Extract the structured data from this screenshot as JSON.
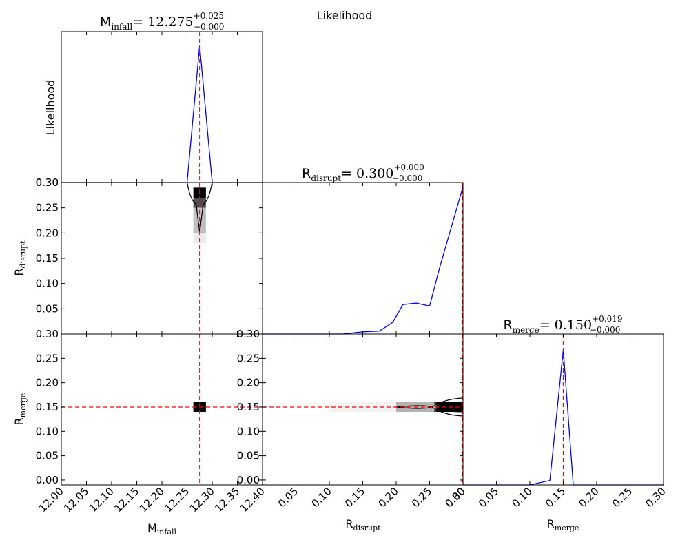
{
  "figure": {
    "suptitle": "Likelihood",
    "likelihood_ylabel": "Likelihood"
  },
  "panel_titles": {
    "m_infall": {
      "var_main": "M",
      "var_sub": "infall",
      "value": "= 12.275",
      "err_plus": "+0.025",
      "err_minus": "−0.000"
    },
    "r_disrupt": {
      "var_main": "R",
      "var_sub": "disrupt",
      "value": "= 0.300",
      "err_plus": "+0.000",
      "err_minus": "−0.000"
    },
    "r_merge": {
      "var_main": "R",
      "var_sub": "merge",
      "value": "= 0.150",
      "err_plus": "+0.019",
      "err_minus": "−0.000"
    }
  },
  "axis_labels": {
    "m_infall": {
      "main": "M",
      "sub": "infall"
    },
    "r_disrupt": {
      "main": "R",
      "sub": "disrupt"
    },
    "r_merge": {
      "main": "R",
      "sub": "merge"
    }
  },
  "colors": {
    "likelihood_line": "#0000ff",
    "best_fit_marker": "#ff0000",
    "contour": "#000000",
    "axes": "#000000"
  },
  "chart_data": [
    {
      "type": "line",
      "panel": "m_infall_1d",
      "x_tick_labels": [
        "12.00",
        "12.05",
        "12.10",
        "12.15",
        "12.20",
        "12.25",
        "12.30",
        "12.35",
        "12.40"
      ],
      "xlim": [
        12.0,
        12.4
      ],
      "ylim": [
        0,
        1.1
      ],
      "series": [
        {
          "x": [
            12.0,
            12.25,
            12.275,
            12.3,
            12.4
          ],
          "y": [
            0,
            0,
            1.0,
            0,
            0
          ]
        }
      ],
      "best_fit_x": 12.275,
      "grid": false
    },
    {
      "type": "line",
      "panel": "r_disrupt_1d",
      "xlim": [
        0.0,
        0.3
      ],
      "ylim": [
        0,
        1.0
      ],
      "series": [
        {
          "x": [
            0.0,
            0.1,
            0.12,
            0.15,
            0.175,
            0.195,
            0.21,
            0.23,
            0.25,
            0.265,
            0.3
          ],
          "y": [
            0,
            0,
            0.0,
            0.015,
            0.02,
            0.08,
            0.2,
            0.21,
            0.19,
            0.45,
            1.0
          ]
        }
      ],
      "best_fit_x": 0.3,
      "grid": false
    },
    {
      "type": "line",
      "panel": "r_merge_1d",
      "x_tick_labels": [
        "0.00",
        "0.05",
        "0.10",
        "0.15",
        "0.20",
        "0.25",
        "0.30"
      ],
      "xlim": [
        0.0,
        0.3
      ],
      "ylim": [
        0,
        1.0
      ],
      "series": [
        {
          "x": [
            0.0,
            0.1,
            0.13,
            0.15,
            0.165,
            0.2,
            0.3
          ],
          "y": [
            0,
            0,
            0.03,
            0.92,
            0,
            0,
            0
          ]
        }
      ],
      "best_fit_x": 0.15,
      "grid": false
    },
    {
      "type": "heatmap",
      "panel": "m_infall_vs_r_disrupt",
      "x": "m_infall",
      "y": "r_disrupt",
      "xlim": [
        12.0,
        12.4
      ],
      "ylim": [
        0.0,
        0.3
      ],
      "y_tick_labels": [
        "0.05",
        "0.10",
        "0.15",
        "0.20",
        "0.25",
        "0.30"
      ],
      "cells": [
        {
          "x": [
            12.2625,
            12.2875
          ],
          "y": [
            0.27,
            0.29
          ],
          "weight": 1.0
        },
        {
          "x": [
            12.2625,
            12.2875
          ],
          "y": [
            0.25,
            0.27
          ],
          "weight": 0.7
        },
        {
          "x": [
            12.2625,
            12.2875
          ],
          "y": [
            0.2,
            0.25
          ],
          "weight": 0.25
        },
        {
          "x": [
            12.2625,
            12.2875
          ],
          "y": [
            0.18,
            0.2
          ],
          "weight": 0.08
        }
      ],
      "best_fit": [
        12.275,
        0.3
      ]
    },
    {
      "type": "heatmap",
      "panel": "m_infall_vs_r_merge",
      "x": "m_infall",
      "y": "r_merge",
      "xlim": [
        12.0,
        12.4
      ],
      "ylim": [
        -0.01,
        0.3
      ],
      "y_tick_labels": [
        "0.00",
        "0.05",
        "0.10",
        "0.15",
        "0.20",
        "0.25",
        "0.30"
      ],
      "cells": [
        {
          "x": [
            12.2625,
            12.2875
          ],
          "y": [
            0.14,
            0.16
          ],
          "weight": 1.0
        }
      ],
      "best_fit": [
        12.275,
        0.15
      ]
    },
    {
      "type": "heatmap",
      "panel": "r_disrupt_vs_r_merge",
      "x": "r_disrupt",
      "y": "r_merge",
      "xlim": [
        0.0,
        0.3
      ],
      "ylim": [
        -0.01,
        0.3
      ],
      "x_tick_labels": [
        "0.05",
        "0.10",
        "0.15",
        "0.20",
        "0.25",
        "0.30"
      ],
      "y_tick_labels": [
        "0.00",
        "0.05",
        "0.10",
        "0.15",
        "0.20",
        "0.25",
        "0.30"
      ],
      "cells": [
        {
          "x": [
            0.26,
            0.3
          ],
          "y": [
            0.14,
            0.16
          ],
          "weight": 1.0
        },
        {
          "x": [
            0.2,
            0.26
          ],
          "y": [
            0.14,
            0.16
          ],
          "weight": 0.3
        },
        {
          "x": [
            0.1,
            0.2
          ],
          "y": [
            0.14,
            0.16
          ],
          "weight": 0.05
        }
      ],
      "best_fit": [
        0.3,
        0.15
      ]
    }
  ]
}
